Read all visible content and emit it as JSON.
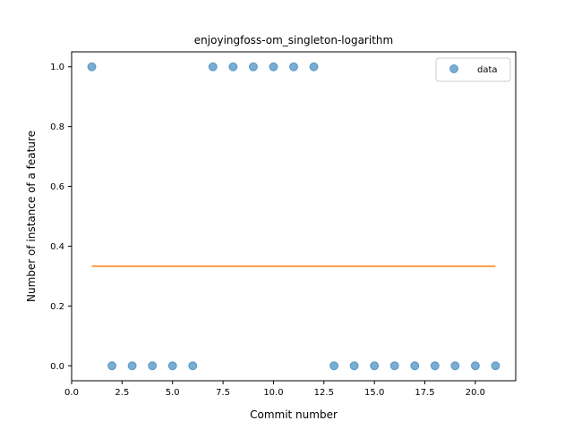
{
  "chart_data": {
    "type": "scatter",
    "title": "enjoyingfoss-om_singleton-logarithm",
    "xlabel": "Commit number",
    "ylabel": "Number of instance of a feature",
    "xlim": [
      0,
      22
    ],
    "ylim": [
      -0.05,
      1.05
    ],
    "xticks": [
      0.0,
      2.5,
      5.0,
      7.5,
      10.0,
      12.5,
      15.0,
      17.5,
      20.0
    ],
    "xtick_labels": [
      "0.0",
      "2.5",
      "5.0",
      "7.5",
      "10.0",
      "12.5",
      "15.0",
      "17.5",
      "20.0"
    ],
    "yticks": [
      0.0,
      0.2,
      0.4,
      0.6,
      0.8,
      1.0
    ],
    "ytick_labels": [
      "0.0",
      "0.2",
      "0.4",
      "0.6",
      "0.8",
      "1.0"
    ],
    "grid": false,
    "legend_position": "top-right",
    "series": [
      {
        "name": "data",
        "kind": "scatter",
        "color": "#1f77b4",
        "x": [
          1,
          2,
          3,
          4,
          5,
          6,
          7,
          8,
          9,
          10,
          11,
          12,
          13,
          14,
          15,
          16,
          17,
          18,
          19,
          20,
          21
        ],
        "y": [
          1,
          0,
          0,
          0,
          0,
          0,
          1,
          1,
          1,
          1,
          1,
          1,
          0,
          0,
          0,
          0,
          0,
          0,
          0,
          0,
          0
        ]
      },
      {
        "kind": "line",
        "color": "#ff7f0e",
        "x": [
          1,
          21
        ],
        "y": [
          0.333,
          0.333
        ]
      }
    ]
  }
}
